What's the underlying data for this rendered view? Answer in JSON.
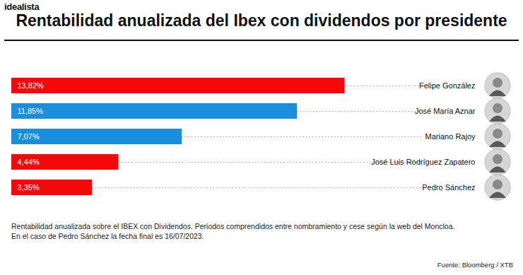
{
  "chart_data": {
    "type": "bar",
    "orientation": "horizontal",
    "logo": "idealista",
    "title": "Rentabilidad anualizada del Ibex con dividendos por presidente",
    "categories": [
      "Felipe González",
      "José María Aznar",
      "Mariano Rajoy",
      "José Luis Rodríguez Zapatero",
      "Pedro Sánchez"
    ],
    "values": [
      13.82,
      11.85,
      7.07,
      4.44,
      3.35
    ],
    "value_labels": [
      "13,82%",
      "11,85%",
      "7,07%",
      "4,44%",
      "3,35%"
    ],
    "colors": [
      "#f40808",
      "#1b8fdb",
      "#1b8fdb",
      "#f40808",
      "#f40808"
    ],
    "xlim": [
      0,
      17
    ],
    "data_labels": true,
    "tick_labels": "y",
    "caption": [
      "Rentabilidad anualizada sobre el IBEX con Dividendos. Periodos comprendidos entre nombramiento y cese según la web del Moncloa.",
      "En el caso de Pedro Sánchez la fecha final es 16/07/2023."
    ],
    "source": "Fuente: Bloomberg / XTB"
  }
}
